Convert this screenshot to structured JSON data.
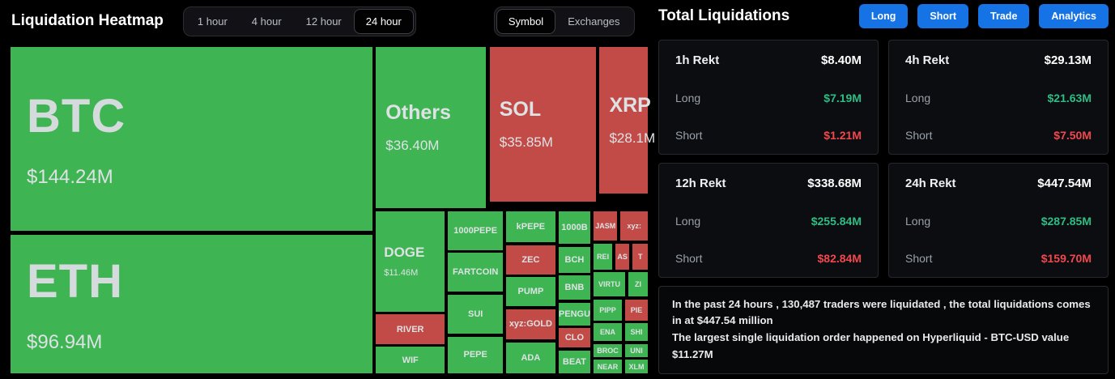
{
  "header": {
    "title": "Liquidation Heatmap",
    "time_tabs": [
      {
        "label": "1 hour",
        "active": false
      },
      {
        "label": "4 hour",
        "active": false
      },
      {
        "label": "12 hour",
        "active": false
      },
      {
        "label": "24 hour",
        "active": true
      }
    ],
    "view_tabs": [
      {
        "label": "Symbol",
        "active": true
      },
      {
        "label": "Exchanges",
        "active": false
      }
    ]
  },
  "right_panel": {
    "title": "Total Liquidations",
    "buttons": [
      "Long",
      "Short",
      "Trade",
      "Analytics"
    ],
    "cards": [
      {
        "title": "1h Rekt",
        "total": "$8.40M",
        "long_label": "Long",
        "long": "$7.19M",
        "short_label": "Short",
        "short": "$1.21M"
      },
      {
        "title": "4h Rekt",
        "total": "$29.13M",
        "long_label": "Long",
        "long": "$21.63M",
        "short_label": "Short",
        "short": "$7.50M"
      },
      {
        "title": "12h Rekt",
        "total": "$338.68M",
        "long_label": "Long",
        "long": "$255.84M",
        "short_label": "Short",
        "short": "$82.84M"
      },
      {
        "title": "24h Rekt",
        "total": "$447.54M",
        "long_label": "Long",
        "long": "$287.85M",
        "short_label": "Short",
        "short": "$159.70M"
      }
    ],
    "summary_line1": "In the past 24 hours , 130,487 traders were liquidated , the total liquidations comes in at $447.54 million",
    "summary_line2": "The largest single liquidation order happened on Hyperliquid - BTC-USD value $11.27M"
  },
  "colors": {
    "tile-green": "#3eb453",
    "tile-red": "#c34b47",
    "accent-blue": "#1673e6",
    "long-green": "#2ebd85",
    "short-red": "#f1484d"
  },
  "chart_data": {
    "type": "heatmap",
    "title": "Liquidation Heatmap",
    "period": "24 hour",
    "mode": "Symbol",
    "tiles": [
      {
        "symbol": "BTC",
        "value": "$144.24M",
        "color": "green",
        "tier": "xl",
        "x": 0,
        "y": 0,
        "w": 56.9,
        "h": 56.6
      },
      {
        "symbol": "ETH",
        "value": "$96.94M",
        "color": "green",
        "tier": "xl",
        "x": 0,
        "y": 57.2,
        "w": 56.9,
        "h": 42.8
      },
      {
        "symbol": "Others",
        "value": "$36.40M",
        "color": "green",
        "tier": "lg",
        "x": 57.2,
        "y": 0,
        "w": 17.5,
        "h": 49.6
      },
      {
        "symbol": "SOL",
        "value": "$35.85M",
        "color": "red",
        "tier": "lg",
        "x": 75.0,
        "y": 0,
        "w": 16.9,
        "h": 47.7
      },
      {
        "symbol": "XRP",
        "value": "$28.1M",
        "color": "red",
        "tier": "lg",
        "x": 92.2,
        "y": 0,
        "w": 7.8,
        "h": 45.2
      },
      {
        "symbol": "DOGE",
        "value": "$11.46M",
        "color": "green",
        "tier": "md",
        "x": 57.2,
        "y": 50.1,
        "w": 11.0,
        "h": 31.1
      },
      {
        "symbol": "RIVER",
        "color": "red",
        "tier": "sm",
        "x": 57.2,
        "y": 81.6,
        "w": 11.0,
        "h": 9.4
      },
      {
        "symbol": "WIF",
        "color": "green",
        "tier": "sm",
        "x": 57.2,
        "y": 91.4,
        "w": 11.0,
        "h": 8.6
      },
      {
        "symbol": "1000PEPE",
        "color": "green",
        "tier": "sm",
        "x": 68.5,
        "y": 50.1,
        "w": 8.8,
        "h": 12.3
      },
      {
        "symbol": "FARTCOIN",
        "color": "green",
        "tier": "sm",
        "x": 68.5,
        "y": 62.8,
        "w": 8.8,
        "h": 12.3
      },
      {
        "symbol": "SUI",
        "color": "green",
        "tier": "sm",
        "x": 68.5,
        "y": 75.5,
        "w": 8.8,
        "h": 12.4
      },
      {
        "symbol": "PEPE",
        "color": "green",
        "tier": "sm",
        "x": 68.5,
        "y": 88.3,
        "w": 8.8,
        "h": 11.7
      },
      {
        "symbol": "kPEPE",
        "color": "green",
        "tier": "sm",
        "x": 77.6,
        "y": 50.1,
        "w": 7.9,
        "h": 9.9
      },
      {
        "symbol": "ZEC",
        "color": "red",
        "tier": "sm",
        "x": 77.6,
        "y": 60.4,
        "w": 7.9,
        "h": 9.4
      },
      {
        "symbol": "PUMP",
        "color": "green",
        "tier": "sm",
        "x": 77.6,
        "y": 70.2,
        "w": 7.9,
        "h": 9.4
      },
      {
        "symbol": "xyz:GOLD",
        "color": "red",
        "tier": "sm",
        "x": 77.6,
        "y": 80.0,
        "w": 7.9,
        "h": 9.6
      },
      {
        "symbol": "ADA",
        "color": "green",
        "tier": "sm",
        "x": 77.6,
        "y": 90.0,
        "w": 7.9,
        "h": 10.0
      },
      {
        "symbol": "1000B",
        "color": "green",
        "tier": "sm",
        "x": 85.8,
        "y": 50.1,
        "w": 5.2,
        "h": 10.4
      },
      {
        "symbol": "BCH",
        "color": "green",
        "tier": "sm",
        "x": 85.8,
        "y": 60.9,
        "w": 5.2,
        "h": 8.4
      },
      {
        "symbol": "BNB",
        "color": "green",
        "tier": "sm",
        "x": 85.8,
        "y": 69.7,
        "w": 5.2,
        "h": 7.9
      },
      {
        "symbol": "PENGU",
        "color": "green",
        "tier": "sm",
        "x": 85.8,
        "y": 78.0,
        "w": 5.2,
        "h": 7.4
      },
      {
        "symbol": "CLO",
        "color": "red",
        "tier": "sm",
        "x": 85.8,
        "y": 85.8,
        "w": 5.2,
        "h": 6.4
      },
      {
        "symbol": "BEAT",
        "color": "green",
        "tier": "sm",
        "x": 85.8,
        "y": 92.6,
        "w": 5.2,
        "h": 7.4
      },
      {
        "symbol": "JASM",
        "color": "red",
        "tier": "xs",
        "x": 91.3,
        "y": 50.1,
        "w": 3.9,
        "h": 9.4
      },
      {
        "symbol": "xyz:",
        "color": "red",
        "tier": "xs",
        "x": 95.5,
        "y": 50.1,
        "w": 4.5,
        "h": 9.4
      },
      {
        "symbol": "REI",
        "color": "green",
        "tier": "xs",
        "x": 91.3,
        "y": 59.9,
        "w": 3.1,
        "h": 8.4
      },
      {
        "symbol": "AS",
        "color": "red",
        "tier": "xs",
        "x": 94.7,
        "y": 59.9,
        "w": 2.4,
        "h": 8.4
      },
      {
        "symbol": "T",
        "color": "red",
        "tier": "xs",
        "x": 97.4,
        "y": 59.9,
        "w": 2.6,
        "h": 8.4
      },
      {
        "symbol": "VIRTU",
        "color": "green",
        "tier": "xs",
        "x": 91.3,
        "y": 68.7,
        "w": 5.1,
        "h": 7.9
      },
      {
        "symbol": "ZI",
        "color": "green",
        "tier": "xs",
        "x": 96.7,
        "y": 68.7,
        "w": 3.3,
        "h": 7.9
      },
      {
        "symbol": "PIPP",
        "color": "green",
        "tier": "xs",
        "x": 91.3,
        "y": 77.0,
        "w": 4.6,
        "h": 6.9
      },
      {
        "symbol": "PIE",
        "color": "red",
        "tier": "xs",
        "x": 96.2,
        "y": 77.0,
        "w": 3.8,
        "h": 6.9
      },
      {
        "symbol": "ENA",
        "color": "green",
        "tier": "xs",
        "x": 91.3,
        "y": 84.3,
        "w": 4.6,
        "h": 5.9
      },
      {
        "symbol": "SHI",
        "color": "green",
        "tier": "xs",
        "x": 96.2,
        "y": 84.3,
        "w": 3.8,
        "h": 5.9
      },
      {
        "symbol": "BROC",
        "color": "green",
        "tier": "xs",
        "x": 91.3,
        "y": 90.6,
        "w": 4.6,
        "h": 4.4
      },
      {
        "symbol": "UNI",
        "color": "green",
        "tier": "xs",
        "x": 96.2,
        "y": 90.6,
        "w": 3.8,
        "h": 4.4
      },
      {
        "symbol": "NEAR",
        "color": "green",
        "tier": "xs",
        "x": 91.3,
        "y": 95.4,
        "w": 4.6,
        "h": 4.6
      },
      {
        "symbol": "XLM",
        "color": "green",
        "tier": "xs",
        "x": 96.2,
        "y": 95.4,
        "w": 3.8,
        "h": 4.6
      }
    ]
  }
}
